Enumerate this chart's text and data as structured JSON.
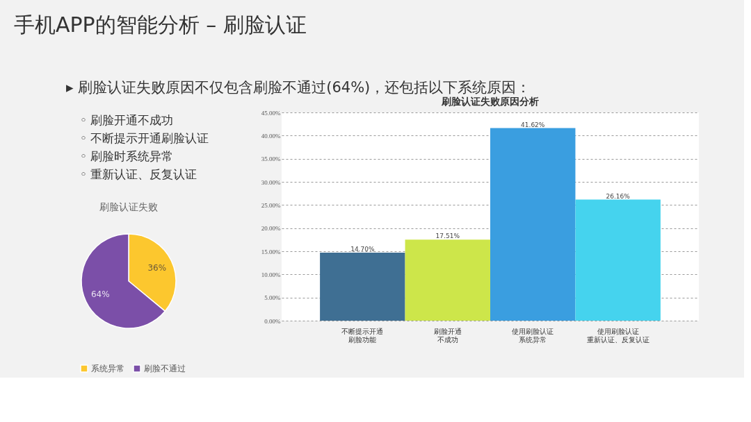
{
  "chart_data": [
    {
      "type": "other",
      "title": "手机APP的智能分析 – 刷脸认证",
      "annotations": [
        "▸ 刷脸认证失败原因不仅包含刷脸不通过(64%)，还包括以下系统原因：",
        "◦ 刷脸开通不成功",
        "◦ 不断提示开通刷脸认证",
        "◦ 刷脸时系统异常",
        "◦ 重新认证、反复认证"
      ]
    },
    {
      "type": "pie",
      "title": "刷脸认证失败",
      "categories": [
        "系统异常",
        "刷脸不通过"
      ],
      "values": [
        36,
        64
      ],
      "colors": [
        "#fcc72e",
        "#7b4fa8"
      ],
      "value_labels": [
        "36%",
        "64%"
      ],
      "legend": "bottom"
    },
    {
      "type": "bar",
      "title": "刷脸认证失败原因分析",
      "categories": [
        "不断提示开通刷脸功能",
        "刷脸开通不成功",
        "使用刷脸认证系统异常",
        "使用刷脸认证重新认证、反复认证"
      ],
      "values": [
        14.7,
        17.51,
        41.62,
        26.16
      ],
      "colors": [
        "#3f6f93",
        "#cde64a",
        "#3a9ee0",
        "#45d3ee"
      ],
      "value_labels": [
        "14.70%",
        "17.51%",
        "41.62%",
        "26.16%"
      ],
      "ylim": [
        0,
        45
      ],
      "yticks": [
        {
          "value": 0,
          "label": "0.00%"
        },
        {
          "value": 5,
          "label": "5.00%"
        },
        {
          "value": 10,
          "label": "10.00%"
        },
        {
          "value": 15,
          "label": "15.00%"
        },
        {
          "value": 20,
          "label": "20.00%"
        },
        {
          "value": 25,
          "label": "25.00%"
        },
        {
          "value": 30,
          "label": "30.00%"
        },
        {
          "value": 35,
          "label": "35.00%"
        },
        {
          "value": 40,
          "label": "40.00%"
        },
        {
          "value": 45,
          "label": "45.00%"
        }
      ],
      "grid": "y"
    }
  ]
}
